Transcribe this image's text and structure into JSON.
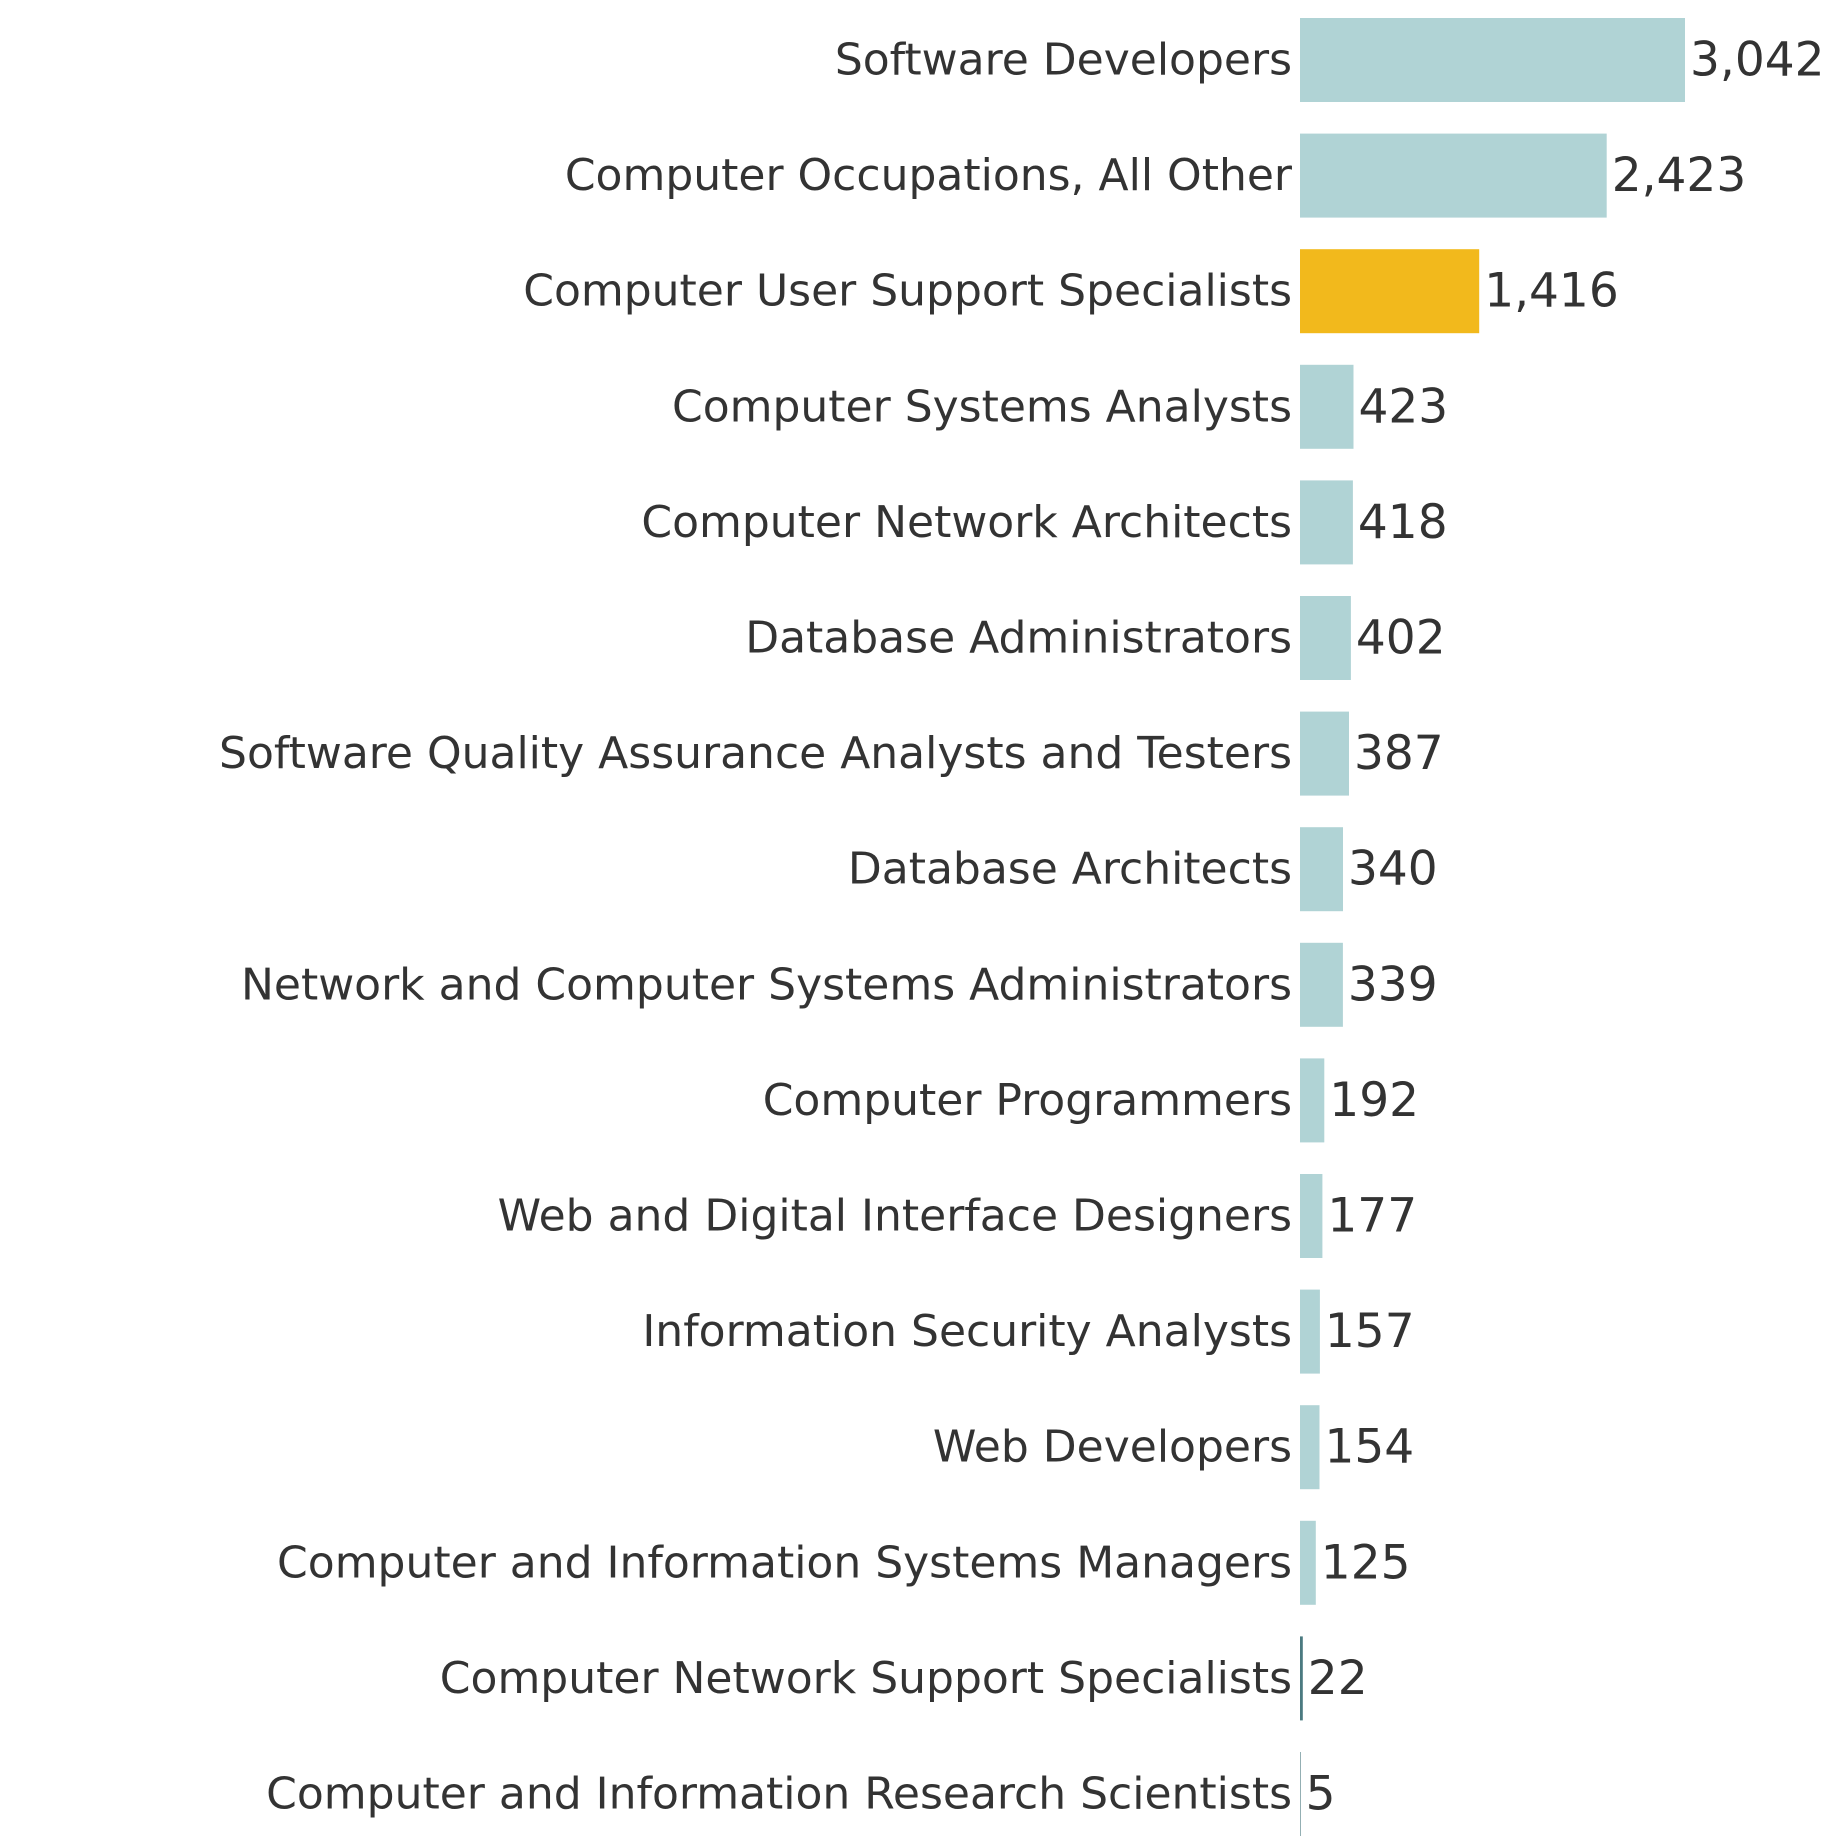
{
  "chart_data": {
    "type": "bar",
    "orientation": "horizontal",
    "categories": [
      "Software Developers",
      "Computer Occupations, All Other",
      "Computer User Support Specialists",
      "Computer Systems Analysts",
      "Computer Network Architects",
      "Database Administrators",
      "Software Quality Assurance Analysts and Testers",
      "Database Architects",
      "Network and Computer Systems Administrators",
      "Computer Programmers",
      "Web and Digital Interface Designers",
      "Information Security Analysts",
      "Web Developers",
      "Computer and Information Systems Managers",
      "Computer Network Support Specialists",
      "Computer and Information Research Scientists"
    ],
    "values": [
      3042,
      2423,
      1416,
      423,
      418,
      402,
      387,
      340,
      339,
      192,
      177,
      157,
      154,
      125,
      22,
      5
    ],
    "value_labels": [
      "3,042",
      "2,423",
      "1,416",
      "423",
      "418",
      "402",
      "387",
      "340",
      "339",
      "192",
      "177",
      "157",
      "154",
      "125",
      "22",
      "5"
    ],
    "highlight_index": 2,
    "colors": {
      "default": "#b0d3d5",
      "highlight": "#f2b91c",
      "small": "#4b7a80",
      "text": "#333333"
    },
    "xlim": [
      0,
      3042
    ],
    "grid": false,
    "legend": "none"
  }
}
